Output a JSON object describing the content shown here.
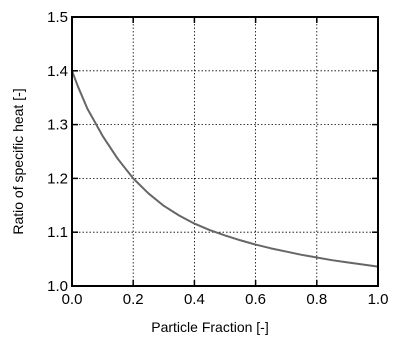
{
  "chart_data": {
    "type": "line",
    "title": "",
    "xlabel": "Particle Fraction [-]",
    "ylabel": "Ratio of specific heat [-]",
    "xlim": [
      0.0,
      1.0
    ],
    "ylim": [
      1.0,
      1.5
    ],
    "x_ticks": [
      "0.0",
      "0.2",
      "0.4",
      "0.6",
      "0.8",
      "1.0"
    ],
    "y_ticks": [
      "1.0",
      "1.1",
      "1.2",
      "1.3",
      "1.4",
      "1.5"
    ],
    "grid": true,
    "legend": "none",
    "series": [
      {
        "color": "#666666",
        "x": [
          0.0,
          0.02,
          0.05,
          0.1,
          0.15,
          0.2,
          0.25,
          0.3,
          0.35,
          0.4,
          0.45,
          0.5,
          0.55,
          0.6,
          0.65,
          0.7,
          0.75,
          0.8,
          0.85,
          0.9,
          0.95,
          1.0
        ],
        "values": [
          1.4,
          1.37,
          1.33,
          1.279,
          1.236,
          1.2,
          1.172,
          1.149,
          1.131,
          1.116,
          1.104,
          1.094,
          1.085,
          1.077,
          1.07,
          1.064,
          1.058,
          1.053,
          1.048,
          1.044,
          1.04,
          1.036
        ]
      }
    ]
  }
}
